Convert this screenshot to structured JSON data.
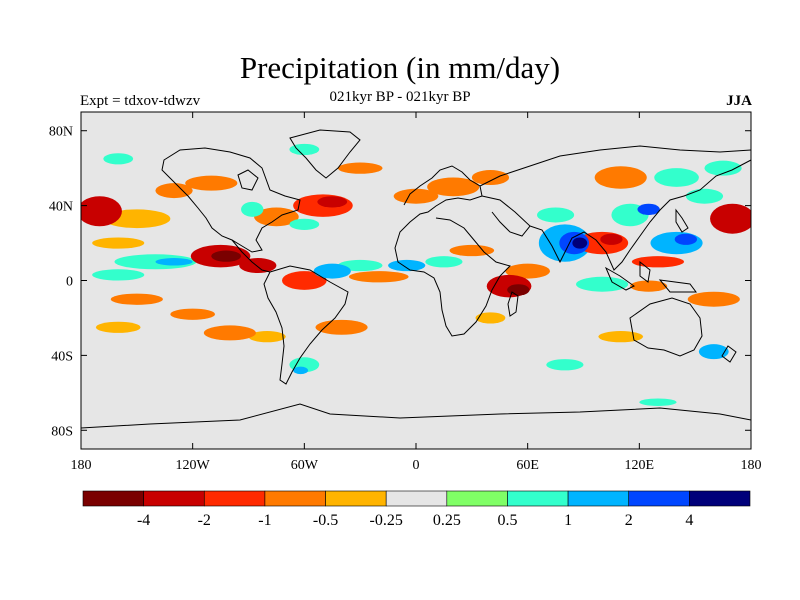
{
  "title": "Precipitation (in mm/day)",
  "subtitle": "021kyr BP - 021kyr BP",
  "left_label": "Expt = tdxov-tdwzv",
  "right_label": "JJA",
  "colors": {
    "background_field": "#e6e6e6",
    "coast": "#000000"
  },
  "chart_data": {
    "type": "heatmap",
    "projection": "cylindrical-equidistant",
    "xlim": [
      -180,
      180
    ],
    "ylim": [
      -90,
      90
    ],
    "x_ticks": [
      {
        "value": -180,
        "label": "180"
      },
      {
        "value": -120,
        "label": "120W"
      },
      {
        "value": -60,
        "label": "60W"
      },
      {
        "value": 0,
        "label": "0"
      },
      {
        "value": 60,
        "label": "60E"
      },
      {
        "value": 120,
        "label": "120E"
      },
      {
        "value": 180,
        "label": "180"
      }
    ],
    "y_ticks": [
      {
        "value": 80,
        "label": "80N"
      },
      {
        "value": 40,
        "label": "40N"
      },
      {
        "value": 0,
        "label": "0"
      },
      {
        "value": -40,
        "label": "40S"
      },
      {
        "value": -80,
        "label": "80S"
      }
    ],
    "colorbar": {
      "colors": [
        "#7a0000",
        "#c80000",
        "#ff2a00",
        "#ff7a00",
        "#ffb400",
        "#e6e6e6",
        "#80ff66",
        "#33ffcc",
        "#00b4ff",
        "#0046ff",
        "#00007a"
      ],
      "labels": [
        "-4",
        "-2",
        "-1",
        "-0.5",
        "-0.25",
        "0.25",
        "0.5",
        "1",
        "2",
        "4"
      ]
    },
    "regions": [
      {
        "lon": -170,
        "lat": 37,
        "rx": 12,
        "ry": 8,
        "level": -2
      },
      {
        "lon": -168,
        "lat": 37,
        "rx": 6,
        "ry": 4,
        "level": -1
      },
      {
        "lon": -150,
        "lat": 33,
        "rx": 18,
        "ry": 5,
        "level": -0.25
      },
      {
        "lon": -160,
        "lat": 20,
        "rx": 14,
        "ry": 3,
        "level": -0.25
      },
      {
        "lon": -130,
        "lat": 48,
        "rx": 10,
        "ry": 4,
        "level": -0.5
      },
      {
        "lon": -110,
        "lat": 52,
        "rx": 14,
        "ry": 4,
        "level": -0.5
      },
      {
        "lon": -105,
        "lat": 13,
        "rx": 16,
        "ry": 6,
        "level": -2
      },
      {
        "lon": -102,
        "lat": 13,
        "rx": 8,
        "ry": 3,
        "level": -4
      },
      {
        "lon": -85,
        "lat": 8,
        "rx": 10,
        "ry": 4,
        "level": -2
      },
      {
        "lon": -140,
        "lat": 10,
        "rx": 22,
        "ry": 4,
        "level": 0.5
      },
      {
        "lon": -130,
        "lat": 10,
        "rx": 10,
        "ry": 2,
        "level": 1
      },
      {
        "lon": -160,
        "lat": 3,
        "rx": 14,
        "ry": 3,
        "level": 0.5
      },
      {
        "lon": -75,
        "lat": 34,
        "rx": 12,
        "ry": 5,
        "level": -0.5
      },
      {
        "lon": -50,
        "lat": 40,
        "rx": 16,
        "ry": 6,
        "level": -1
      },
      {
        "lon": -45,
        "lat": 42,
        "rx": 8,
        "ry": 3,
        "level": -2
      },
      {
        "lon": -88,
        "lat": 38,
        "rx": 6,
        "ry": 4,
        "level": 0.5
      },
      {
        "lon": -60,
        "lat": 30,
        "rx": 8,
        "ry": 3,
        "level": 0.5
      },
      {
        "lon": -60,
        "lat": 0,
        "rx": 12,
        "ry": 5,
        "level": -1
      },
      {
        "lon": -45,
        "lat": 5,
        "rx": 10,
        "ry": 4,
        "level": 1
      },
      {
        "lon": -30,
        "lat": 8,
        "rx": 12,
        "ry": 3,
        "level": 0.5
      },
      {
        "lon": -20,
        "lat": 2,
        "rx": 16,
        "ry": 3,
        "level": -0.5
      },
      {
        "lon": -5,
        "lat": 8,
        "rx": 10,
        "ry": 3,
        "level": 1
      },
      {
        "lon": 15,
        "lat": 10,
        "rx": 10,
        "ry": 3,
        "level": 0.5
      },
      {
        "lon": -150,
        "lat": -10,
        "rx": 14,
        "ry": 3,
        "level": -0.5
      },
      {
        "lon": -120,
        "lat": -18,
        "rx": 12,
        "ry": 3,
        "level": -0.5
      },
      {
        "lon": -100,
        "lat": -28,
        "rx": 14,
        "ry": 4,
        "level": -0.5
      },
      {
        "lon": -80,
        "lat": -30,
        "rx": 10,
        "ry": 3,
        "level": -0.25
      },
      {
        "lon": -40,
        "lat": -25,
        "rx": 14,
        "ry": 4,
        "level": -0.5
      },
      {
        "lon": -60,
        "lat": -45,
        "rx": 8,
        "ry": 4,
        "level": 0.5
      },
      {
        "lon": -62,
        "lat": -48,
        "rx": 4,
        "ry": 2,
        "level": 1
      },
      {
        "lon": -160,
        "lat": -25,
        "rx": 12,
        "ry": 3,
        "level": -0.25
      },
      {
        "lon": 0,
        "lat": 45,
        "rx": 12,
        "ry": 4,
        "level": -0.5
      },
      {
        "lon": 20,
        "lat": 50,
        "rx": 14,
        "ry": 5,
        "level": -0.5
      },
      {
        "lon": 40,
        "lat": 55,
        "rx": 10,
        "ry": 4,
        "level": -0.5
      },
      {
        "lon": 30,
        "lat": 16,
        "rx": 12,
        "ry": 3,
        "level": -0.5
      },
      {
        "lon": 50,
        "lat": -3,
        "rx": 12,
        "ry": 6,
        "level": -2
      },
      {
        "lon": 55,
        "lat": -5,
        "rx": 6,
        "ry": 3,
        "level": -4
      },
      {
        "lon": 60,
        "lat": 5,
        "rx": 12,
        "ry": 4,
        "level": -0.5
      },
      {
        "lon": 40,
        "lat": -20,
        "rx": 8,
        "ry": 3,
        "level": -0.25
      },
      {
        "lon": 80,
        "lat": 20,
        "rx": 14,
        "ry": 10,
        "level": 1
      },
      {
        "lon": 85,
        "lat": 20,
        "rx": 8,
        "ry": 6,
        "level": 2
      },
      {
        "lon": 88,
        "lat": 20,
        "rx": 4,
        "ry": 3,
        "level": 4
      },
      {
        "lon": 75,
        "lat": 35,
        "rx": 10,
        "ry": 4,
        "level": 0.5
      },
      {
        "lon": 100,
        "lat": 20,
        "rx": 14,
        "ry": 6,
        "level": -1
      },
      {
        "lon": 105,
        "lat": 22,
        "rx": 6,
        "ry": 3,
        "level": -2
      },
      {
        "lon": 115,
        "lat": 35,
        "rx": 10,
        "ry": 6,
        "level": 0.5
      },
      {
        "lon": 125,
        "lat": 38,
        "rx": 6,
        "ry": 3,
        "level": 2
      },
      {
        "lon": 140,
        "lat": 20,
        "rx": 14,
        "ry": 6,
        "level": 1
      },
      {
        "lon": 145,
        "lat": 22,
        "rx": 6,
        "ry": 3,
        "level": 2
      },
      {
        "lon": 130,
        "lat": 10,
        "rx": 14,
        "ry": 3,
        "level": -1
      },
      {
        "lon": 170,
        "lat": 33,
        "rx": 12,
        "ry": 8,
        "level": -2
      },
      {
        "lon": 172,
        "lat": 33,
        "rx": 5,
        "ry": 4,
        "level": -1
      },
      {
        "lon": 155,
        "lat": 45,
        "rx": 10,
        "ry": 4,
        "level": 0.5
      },
      {
        "lon": 110,
        "lat": 55,
        "rx": 14,
        "ry": 6,
        "level": -0.5
      },
      {
        "lon": 140,
        "lat": 55,
        "rx": 12,
        "ry": 5,
        "level": 0.5
      },
      {
        "lon": 165,
        "lat": 60,
        "rx": 10,
        "ry": 4,
        "level": 0.5
      },
      {
        "lon": 100,
        "lat": -2,
        "rx": 14,
        "ry": 4,
        "level": 0.5
      },
      {
        "lon": 125,
        "lat": -3,
        "rx": 10,
        "ry": 3,
        "level": -0.5
      },
      {
        "lon": 160,
        "lat": -10,
        "rx": 14,
        "ry": 4,
        "level": -0.5
      },
      {
        "lon": 110,
        "lat": -30,
        "rx": 12,
        "ry": 3,
        "level": -0.25
      },
      {
        "lon": 160,
        "lat": -38,
        "rx": 8,
        "ry": 4,
        "level": 1
      },
      {
        "lon": 80,
        "lat": -45,
        "rx": 10,
        "ry": 3,
        "level": 0.5
      },
      {
        "lon": 130,
        "lat": -65,
        "rx": 10,
        "ry": 2,
        "level": 0.5
      },
      {
        "lon": -30,
        "lat": 60,
        "rx": 12,
        "ry": 3,
        "level": -0.5
      },
      {
        "lon": -60,
        "lat": 70,
        "rx": 8,
        "ry": 3,
        "level": 0.5
      },
      {
        "lon": -160,
        "lat": 65,
        "rx": 8,
        "ry": 3,
        "level": 0.5
      }
    ]
  }
}
